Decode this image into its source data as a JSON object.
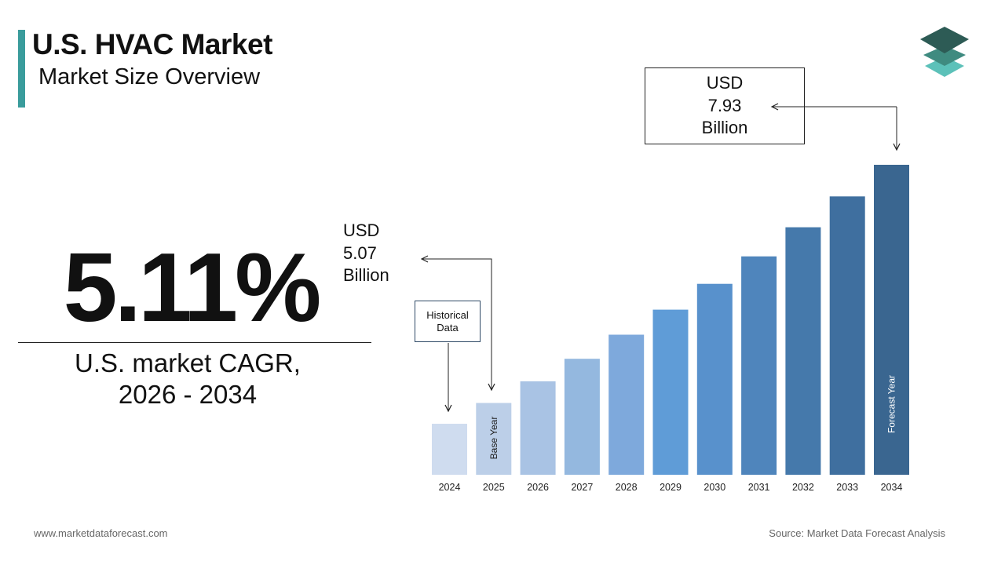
{
  "header": {
    "title": "U.S. HVAC Market",
    "subtitle": "Market Size Overview"
  },
  "kpi": {
    "value": "5.11%",
    "label": "U.S. market CAGR,\n2026 - 2034"
  },
  "callouts": {
    "start": "USD\n5.07\nBillion",
    "end": "USD\n7.93\nBillion",
    "historical": "Historical\nData"
  },
  "footer": {
    "website": "www.marketdataforecast.com",
    "source": "Source: Market Data Forecast Analysis"
  },
  "colors": {
    "accent": "#3a9c9c",
    "logo": [
      "#2d5b55",
      "#3f8b80",
      "#5cc1b9"
    ]
  },
  "chart_data": {
    "type": "bar",
    "categories": [
      "2024",
      "2025",
      "2026",
      "2027",
      "2028",
      "2029",
      "2030",
      "2031",
      "2032",
      "2033",
      "2034"
    ],
    "values": [
      4.82,
      5.07,
      5.33,
      5.6,
      5.89,
      6.19,
      6.5,
      6.83,
      7.18,
      7.55,
      7.93
    ],
    "value_unit": "USD Billion",
    "bar_labels": {
      "2025": "Base Year",
      "2034": "Forecast Year"
    },
    "colors": [
      "#cfdcef",
      "#bccfe8",
      "#a9c3e4",
      "#94b8df",
      "#7ea9dc",
      "#5f9cd7",
      "#5891cc",
      "#4f85bc",
      "#4579ab",
      "#3f6f9f",
      "#3a6690"
    ]
  }
}
